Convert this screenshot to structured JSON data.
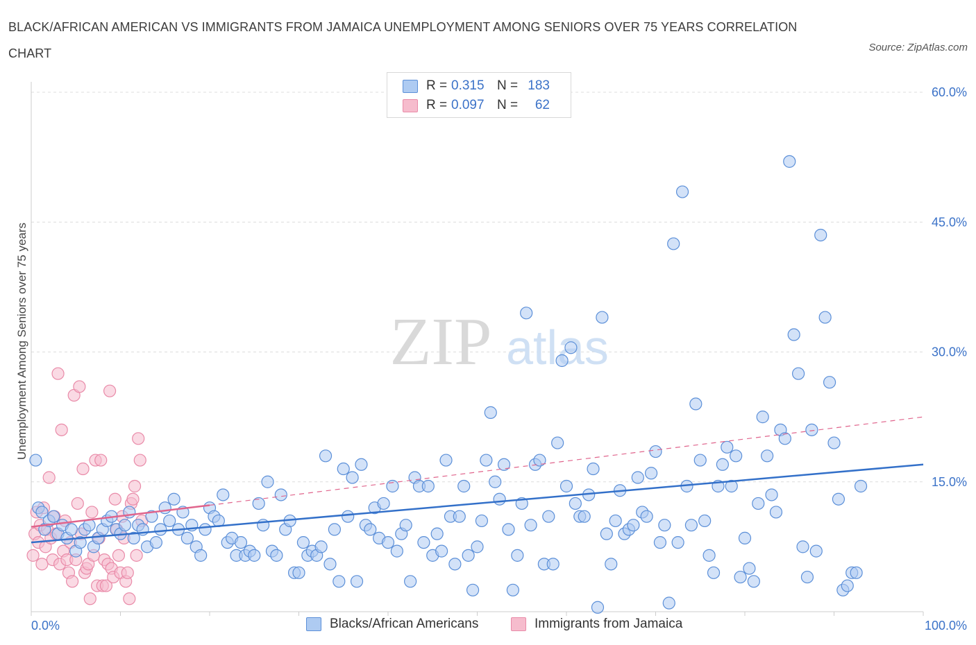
{
  "title": "BLACK/AFRICAN AMERICAN VS IMMIGRANTS FROM JAMAICA UNEMPLOYMENT AMONG SENIORS OVER 75 YEARS CORRELATION CHART",
  "source": "Source: ZipAtlas.com",
  "watermark": {
    "zip": "ZIP",
    "atlas": "atlas"
  },
  "colors": {
    "blue_fill": "#aecbf2",
    "blue_stroke": "#5b8fd8",
    "blue_line": "#3370c9",
    "pink_fill": "#f6bccd",
    "pink_stroke": "#e98aa8",
    "pink_line": "#e0648c",
    "axis_text": "#3b72c8"
  },
  "legend": {
    "rows": [
      {
        "r_label": "R =",
        "r_value": "0.315",
        "n_label": "N =",
        "n_value": "183"
      },
      {
        "r_label": "R =",
        "r_value": "0.097",
        "n_label": "N =",
        "n_value": "62"
      }
    ]
  },
  "bottom_legend": {
    "series1": "Blacks/African Americans",
    "series2": "Immigrants from Jamaica"
  },
  "chart_data": {
    "type": "scatter",
    "title": "BLACK/AFRICAN AMERICAN VS IMMIGRANTS FROM JAMAICA UNEMPLOYMENT AMONG SENIORS OVER 75 YEARS CORRELATION CHART",
    "xlabel": "",
    "ylabel": "Unemployment Among Seniors over 75 years",
    "xlim": [
      0,
      100
    ],
    "ylim": [
      0,
      60
    ],
    "x_tick_labels": [
      "0.0%",
      "100.0%"
    ],
    "y_ticks": [
      15,
      30,
      45,
      60
    ],
    "y_tick_labels": [
      "15.0%",
      "30.0%",
      "45.0%",
      "60.0%"
    ],
    "grid": "horizontal dashed",
    "legend_position": "top-center",
    "series": [
      {
        "name": "Blacks/African Americans",
        "R": 0.315,
        "N": 183,
        "trend": {
          "x0": 0,
          "y0": 8.0,
          "x1": 100,
          "y1": 17.0
        },
        "points": [
          [
            0.5,
            17.5
          ],
          [
            0.8,
            12.0
          ],
          [
            1.2,
            11.5
          ],
          [
            1.5,
            9.5
          ],
          [
            2.0,
            10.5
          ],
          [
            2.5,
            11.0
          ],
          [
            3.0,
            9.0
          ],
          [
            3.5,
            10.0
          ],
          [
            4.0,
            8.5
          ],
          [
            4.5,
            9.5
          ],
          [
            5.0,
            7.0
          ],
          [
            5.5,
            8.0
          ],
          [
            6.0,
            9.5
          ],
          [
            6.5,
            10.0
          ],
          [
            7.0,
            7.5
          ],
          [
            7.5,
            8.5
          ],
          [
            8.0,
            9.5
          ],
          [
            8.5,
            10.5
          ],
          [
            9.0,
            11.0
          ],
          [
            9.5,
            9.5
          ],
          [
            10.0,
            9.0
          ],
          [
            10.5,
            10.0
          ],
          [
            11.0,
            11.5
          ],
          [
            11.5,
            8.5
          ],
          [
            12.0,
            10.0
          ],
          [
            12.5,
            9.5
          ],
          [
            13.0,
            7.5
          ],
          [
            13.5,
            11.0
          ],
          [
            14.0,
            8.0
          ],
          [
            14.5,
            9.5
          ],
          [
            15.0,
            12.0
          ],
          [
            15.5,
            10.5
          ],
          [
            16.0,
            13.0
          ],
          [
            16.5,
            9.5
          ],
          [
            17.0,
            11.5
          ],
          [
            17.5,
            8.5
          ],
          [
            18.0,
            10.0
          ],
          [
            18.5,
            7.5
          ],
          [
            19.0,
            6.5
          ],
          [
            19.5,
            9.5
          ],
          [
            20.0,
            12.0
          ],
          [
            20.5,
            11.0
          ],
          [
            21.0,
            10.5
          ],
          [
            21.5,
            13.5
          ],
          [
            22.0,
            8.0
          ],
          [
            22.5,
            8.5
          ],
          [
            23.0,
            6.5
          ],
          [
            23.5,
            8.0
          ],
          [
            24.0,
            6.5
          ],
          [
            24.5,
            7.0
          ],
          [
            25.0,
            6.5
          ],
          [
            25.5,
            12.5
          ],
          [
            26.0,
            10.0
          ],
          [
            26.5,
            15.0
          ],
          [
            27.0,
            7.0
          ],
          [
            27.5,
            6.5
          ],
          [
            28.0,
            13.5
          ],
          [
            28.5,
            9.5
          ],
          [
            29.0,
            10.5
          ],
          [
            29.5,
            4.5
          ],
          [
            30.0,
            4.5
          ],
          [
            30.5,
            8.0
          ],
          [
            31.0,
            6.5
          ],
          [
            31.5,
            7.0
          ],
          [
            32.0,
            6.5
          ],
          [
            32.5,
            7.5
          ],
          [
            33.0,
            18.0
          ],
          [
            33.5,
            5.5
          ],
          [
            34.0,
            9.5
          ],
          [
            34.5,
            3.5
          ],
          [
            35.0,
            16.5
          ],
          [
            35.5,
            11.0
          ],
          [
            36.0,
            15.5
          ],
          [
            36.5,
            3.5
          ],
          [
            37.0,
            17.0
          ],
          [
            37.5,
            10.0
          ],
          [
            38.0,
            9.5
          ],
          [
            38.5,
            12.0
          ],
          [
            39.0,
            8.5
          ],
          [
            39.5,
            12.5
          ],
          [
            40.0,
            8.0
          ],
          [
            40.5,
            14.5
          ],
          [
            41.0,
            7.0
          ],
          [
            41.5,
            9.0
          ],
          [
            42.0,
            10.0
          ],
          [
            42.5,
            3.5
          ],
          [
            43.0,
            15.5
          ],
          [
            43.5,
            14.5
          ],
          [
            44.0,
            8.0
          ],
          [
            44.5,
            14.5
          ],
          [
            45.0,
            6.5
          ],
          [
            45.5,
            9.0
          ],
          [
            46.0,
            7.0
          ],
          [
            46.5,
            17.5
          ],
          [
            47.0,
            11.0
          ],
          [
            47.5,
            5.5
          ],
          [
            48.0,
            11.0
          ],
          [
            48.5,
            14.5
          ],
          [
            49.0,
            6.5
          ],
          [
            49.5,
            2.5
          ],
          [
            50.0,
            7.5
          ],
          [
            50.5,
            10.5
          ],
          [
            51.0,
            17.5
          ],
          [
            51.5,
            23.0
          ],
          [
            52.0,
            15.0
          ],
          [
            52.5,
            13.0
          ],
          [
            53.0,
            17.0
          ],
          [
            53.5,
            9.5
          ],
          [
            54.0,
            2.5
          ],
          [
            54.5,
            6.5
          ],
          [
            55.0,
            12.5
          ],
          [
            55.5,
            34.5
          ],
          [
            56.0,
            10.0
          ],
          [
            56.5,
            17.0
          ],
          [
            57.0,
            17.5
          ],
          [
            57.5,
            5.5
          ],
          [
            58.0,
            11.0
          ],
          [
            58.5,
            5.5
          ],
          [
            59.0,
            19.5
          ],
          [
            59.5,
            29.0
          ],
          [
            60.0,
            14.5
          ],
          [
            60.5,
            30.5
          ],
          [
            61.0,
            12.5
          ],
          [
            61.5,
            11.0
          ],
          [
            62.0,
            11.0
          ],
          [
            62.5,
            13.5
          ],
          [
            63.0,
            16.5
          ],
          [
            63.5,
            0.5
          ],
          [
            64.0,
            34.0
          ],
          [
            64.5,
            9.0
          ],
          [
            65.0,
            5.5
          ],
          [
            65.5,
            10.5
          ],
          [
            66.0,
            14.0
          ],
          [
            66.5,
            9.0
          ],
          [
            67.0,
            9.5
          ],
          [
            67.5,
            10.0
          ],
          [
            68.0,
            15.5
          ],
          [
            68.5,
            11.5
          ],
          [
            69.0,
            11.0
          ],
          [
            69.5,
            16.0
          ],
          [
            70.0,
            18.5
          ],
          [
            70.5,
            8.0
          ],
          [
            71.0,
            10.0
          ],
          [
            71.5,
            1.0
          ],
          [
            72.0,
            42.5
          ],
          [
            72.5,
            8.0
          ],
          [
            73.0,
            48.5
          ],
          [
            73.5,
            14.5
          ],
          [
            74.0,
            10.0
          ],
          [
            74.5,
            24.0
          ],
          [
            75.0,
            17.5
          ],
          [
            75.5,
            10.5
          ],
          [
            76.0,
            6.5
          ],
          [
            76.5,
            4.5
          ],
          [
            77.0,
            14.5
          ],
          [
            77.5,
            17.0
          ],
          [
            78.0,
            19.0
          ],
          [
            78.5,
            14.5
          ],
          [
            79.0,
            18.0
          ],
          [
            79.5,
            4.0
          ],
          [
            80.0,
            8.5
          ],
          [
            80.5,
            5.0
          ],
          [
            81.0,
            3.5
          ],
          [
            81.5,
            12.5
          ],
          [
            82.0,
            22.5
          ],
          [
            82.5,
            18.0
          ],
          [
            83.0,
            13.5
          ],
          [
            83.5,
            11.5
          ],
          [
            84.0,
            21.0
          ],
          [
            84.5,
            20.0
          ],
          [
            85.0,
            52.0
          ],
          [
            85.5,
            32.0
          ],
          [
            86.0,
            27.5
          ],
          [
            86.5,
            7.5
          ],
          [
            87.0,
            4.0
          ],
          [
            87.5,
            21.0
          ],
          [
            88.0,
            7.0
          ],
          [
            88.5,
            43.5
          ],
          [
            89.0,
            34.0
          ],
          [
            89.5,
            26.5
          ],
          [
            90.0,
            19.5
          ],
          [
            90.5,
            13.0
          ],
          [
            91.0,
            2.5
          ],
          [
            91.5,
            3.0
          ],
          [
            92.0,
            4.5
          ],
          [
            92.5,
            4.5
          ],
          [
            93.0,
            14.5
          ]
        ]
      },
      {
        "name": "Immigrants from Jamaica",
        "R": 0.097,
        "N": 62,
        "trend_solid": {
          "x0": 0,
          "y0": 9.8,
          "x1": 20,
          "y1": 12.3
        },
        "trend_dashed": {
          "x0": 20,
          "y0": 12.3,
          "x1": 100,
          "y1": 22.5
        },
        "points": [
          [
            0.2,
            6.5
          ],
          [
            0.4,
            9.0
          ],
          [
            0.6,
            11.5
          ],
          [
            0.8,
            8.0
          ],
          [
            1.0,
            10.0
          ],
          [
            1.2,
            5.5
          ],
          [
            1.4,
            12.0
          ],
          [
            1.6,
            7.5
          ],
          [
            1.8,
            9.5
          ],
          [
            2.0,
            15.5
          ],
          [
            2.2,
            8.5
          ],
          [
            2.4,
            6.0
          ],
          [
            2.6,
            11.0
          ],
          [
            2.8,
            9.0
          ],
          [
            3.0,
            27.5
          ],
          [
            3.2,
            5.5
          ],
          [
            3.4,
            21.0
          ],
          [
            3.6,
            7.0
          ],
          [
            3.8,
            10.5
          ],
          [
            4.0,
            6.0
          ],
          [
            4.2,
            4.5
          ],
          [
            4.4,
            8.0
          ],
          [
            4.6,
            3.5
          ],
          [
            4.8,
            25.0
          ],
          [
            5.0,
            6.0
          ],
          [
            5.2,
            12.5
          ],
          [
            5.4,
            26.0
          ],
          [
            5.6,
            9.0
          ],
          [
            5.8,
            16.5
          ],
          [
            6.0,
            4.5
          ],
          [
            6.2,
            5.0
          ],
          [
            6.4,
            5.5
          ],
          [
            6.6,
            1.5
          ],
          [
            6.8,
            11.5
          ],
          [
            7.0,
            6.5
          ],
          [
            7.2,
            17.5
          ],
          [
            7.4,
            3.0
          ],
          [
            7.6,
            8.5
          ],
          [
            7.8,
            17.5
          ],
          [
            8.0,
            3.0
          ],
          [
            8.2,
            6.0
          ],
          [
            8.4,
            3.0
          ],
          [
            8.6,
            5.5
          ],
          [
            8.8,
            25.5
          ],
          [
            9.0,
            5.0
          ],
          [
            9.2,
            4.0
          ],
          [
            9.4,
            13.0
          ],
          [
            9.6,
            9.5
          ],
          [
            9.8,
            6.5
          ],
          [
            10.0,
            4.5
          ],
          [
            10.2,
            11.0
          ],
          [
            10.4,
            8.5
          ],
          [
            10.6,
            3.5
          ],
          [
            10.8,
            4.5
          ],
          [
            11.0,
            1.5
          ],
          [
            11.2,
            12.5
          ],
          [
            11.4,
            13.0
          ],
          [
            11.6,
            14.5
          ],
          [
            11.8,
            6.5
          ],
          [
            12.0,
            20.0
          ],
          [
            12.2,
            17.5
          ],
          [
            12.4,
            10.5
          ]
        ]
      }
    ]
  }
}
